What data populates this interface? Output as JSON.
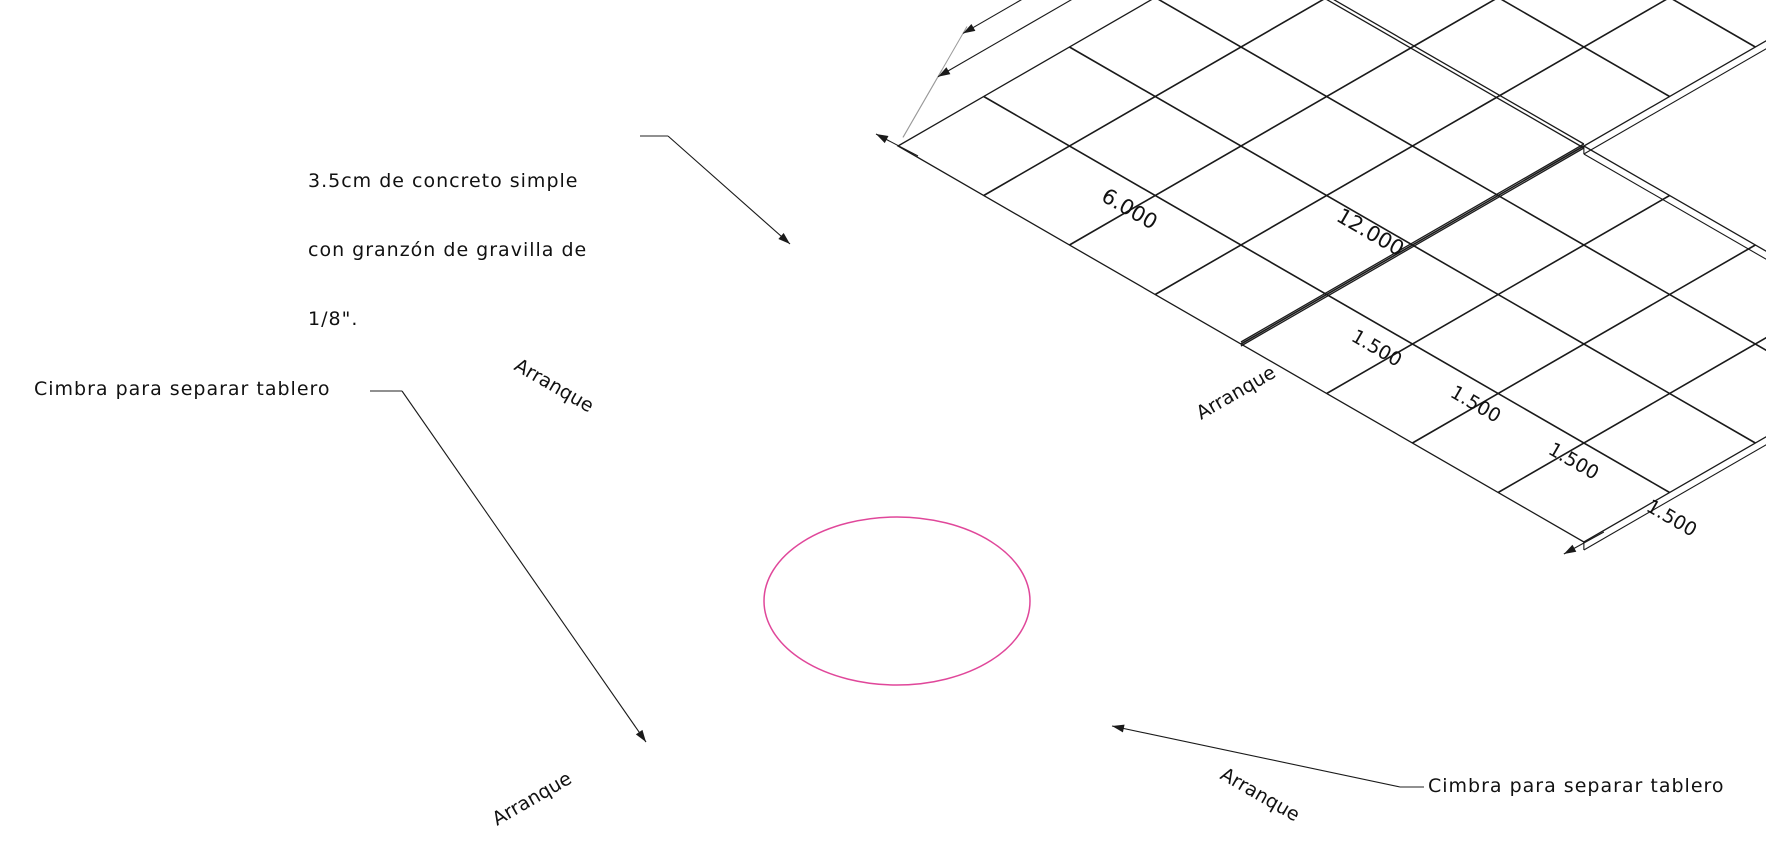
{
  "colors": {
    "line": "#1a1a1a",
    "dim": "#222222",
    "extension": "#9a9a9a",
    "highlight": "#e0479a"
  },
  "annotations": {
    "concrete_note": [
      "3.5cm de concreto simple",
      "con granzón de gravilla de",
      "1/8\"."
    ],
    "cimbra_left": "Cimbra para separar tablero",
    "cimbra_right": "Cimbra para separar tablero",
    "arranque_label": "Arranque"
  },
  "dimensions": {
    "overall": "12.000",
    "half": "6.000",
    "modules": [
      "1.500",
      "1.500",
      "1.500",
      "1.500"
    ]
  },
  "grid": {
    "modules_per_arm_width": 4,
    "modules_per_arm_length": 8,
    "module_size_m": 1.5
  }
}
